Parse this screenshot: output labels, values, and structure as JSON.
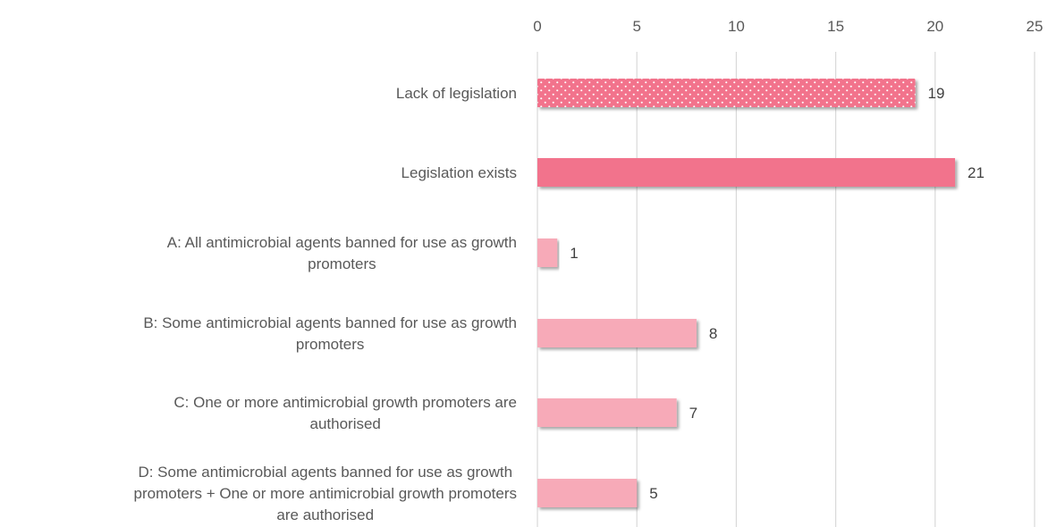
{
  "chart_data": {
    "type": "bar",
    "orientation": "horizontal",
    "title": "",
    "xlabel": "",
    "ylabel": "",
    "xlim": [
      0,
      25
    ],
    "ticks": [
      0,
      5,
      10,
      15,
      20,
      25
    ],
    "grid": true,
    "legend": "none",
    "categories": [
      [
        "Lack of legislation"
      ],
      [
        "Legislation exists"
      ],
      [
        "A: All antimicrobial agents banned for use as growth",
        "promoters"
      ],
      [
        "B: Some antimicrobial agents banned for use as growth",
        "promoters"
      ],
      [
        "C: One or more antimicrobial growth promoters are",
        "authorised"
      ],
      [
        "D: Some antimicrobial agents banned for use as growth",
        "promoters + One or more antimicrobial growth promoters",
        "are authorised"
      ]
    ],
    "values": [
      19,
      21,
      1,
      8,
      7,
      5
    ],
    "bar_styles": [
      "dotted",
      "solid",
      "light",
      "light",
      "light",
      "light"
    ],
    "colors": {
      "dark": "#f2738c",
      "light": "#f7aab8",
      "dots": "#ffffff",
      "grid": "#d9d9d9"
    }
  }
}
